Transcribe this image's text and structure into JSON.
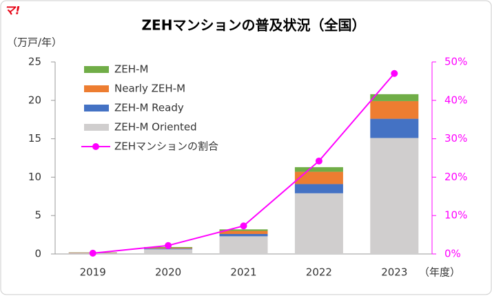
{
  "logo": "マ!",
  "chart_data": {
    "type": "bar",
    "title": "ZEHマンションの普及状況（全国）",
    "y_label": "（万戸/年）",
    "x_label": "（年度）",
    "categories": [
      "2019",
      "2020",
      "2021",
      "2022",
      "2023"
    ],
    "stacked": true,
    "series": [
      {
        "name": "ZEH-M Oriented",
        "color": "#d0cece",
        "values": [
          0.1,
          0.6,
          2.3,
          7.9,
          15.1
        ]
      },
      {
        "name": "ZEH-M Ready",
        "color": "#4472c4",
        "values": [
          0.03,
          0.1,
          0.3,
          1.2,
          2.5
        ]
      },
      {
        "name": "Nearly ZEH-M",
        "color": "#ed7d31",
        "values": [
          0.05,
          0.1,
          0.4,
          1.6,
          2.3
        ]
      },
      {
        "name": "ZEH-M",
        "color": "#70ad47",
        "values": [
          0.02,
          0.1,
          0.2,
          0.6,
          0.9
        ]
      },
      {
        "name": "ZEHマンションの割合",
        "color": "#ff00ff",
        "type": "line",
        "axis": "y2",
        "values": [
          0.2,
          2.2,
          7.3,
          24.2,
          47
        ]
      }
    ],
    "ylim": [
      0,
      25
    ],
    "yticks": [
      0,
      5,
      10,
      15,
      20,
      25
    ],
    "y2lim": [
      0,
      50
    ],
    "y2ticks": [
      {
        "value": 0,
        "label": "0%"
      },
      {
        "value": 10,
        "label": "10%"
      },
      {
        "value": 20,
        "label": "20%"
      },
      {
        "value": 30,
        "label": "30%"
      },
      {
        "value": 40,
        "label": "40%"
      },
      {
        "value": 50,
        "label": "50%"
      }
    ],
    "legend": "upper left"
  }
}
